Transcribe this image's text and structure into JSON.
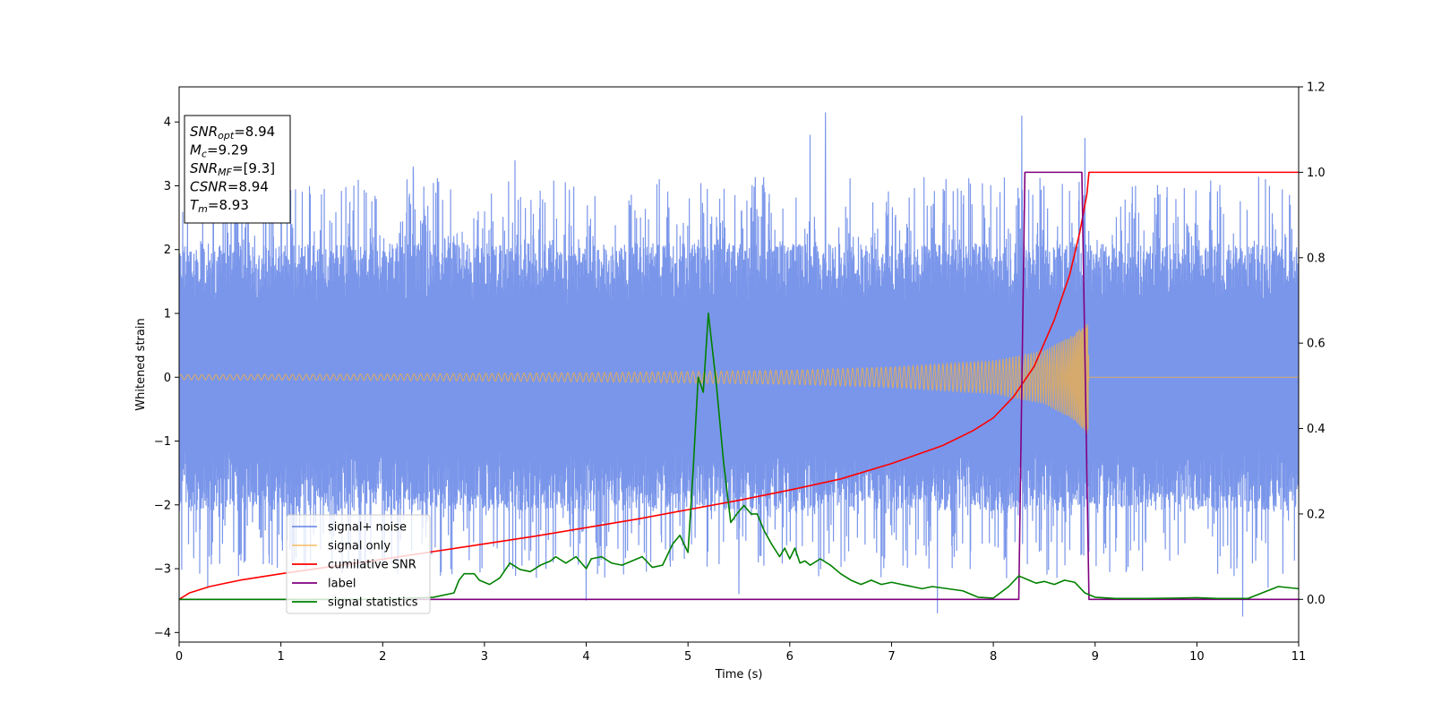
{
  "chart_data": {
    "type": "line",
    "xlabel": "Time (s)",
    "ylabel": "Whitened strain",
    "xlim": [
      0,
      11
    ],
    "ylim_left": [
      -4.15,
      4.55
    ],
    "ylim_right": [
      -0.1,
      1.2
    ],
    "xticks": [
      0,
      1,
      2,
      3,
      4,
      5,
      6,
      7,
      8,
      9,
      10,
      11
    ],
    "yticks_left": [
      -4,
      -3,
      -2,
      -1,
      0,
      1,
      2,
      3,
      4
    ],
    "yticks_right": [
      "0.0",
      "0.2",
      "0.4",
      "0.6",
      "0.8",
      "1.0",
      "1.2"
    ],
    "grid": false,
    "legend_position": "lower-left",
    "info_box": [
      {
        "base": "SNR",
        "sub": "opt",
        "rest": "=8.94"
      },
      {
        "base": "M",
        "sub": "c",
        "rest": "=9.29"
      },
      {
        "base": "SNR",
        "sub": "MF",
        "rest": "=[9.3]"
      },
      {
        "base": "CSNR",
        "sub": "",
        "rest": "=8.94"
      },
      {
        "base": "T",
        "sub": "m",
        "rest": "=8.93"
      }
    ],
    "series": [
      {
        "name": "signal+ noise",
        "color": "#4169e1",
        "axis": "left",
        "envelope_low": -2.1,
        "envelope_high": 2.1,
        "peaks": [
          [
            0.28,
            -3.3
          ],
          [
            0.85,
            3.3
          ],
          [
            2.3,
            3.3
          ],
          [
            3.3,
            3.4
          ],
          [
            4.0,
            -3.5
          ],
          [
            5.5,
            -3.4
          ],
          [
            6.2,
            3.8
          ],
          [
            6.35,
            4.15
          ],
          [
            8.28,
            4.1
          ],
          [
            8.9,
            3.75
          ],
          [
            7.45,
            -3.7
          ],
          [
            10.45,
            -3.75
          ],
          [
            10.7,
            -3.3
          ]
        ]
      },
      {
        "name": "signal only",
        "color": "#f5b041",
        "axis": "left",
        "amplitude": [
          [
            0,
            0.04
          ],
          [
            2,
            0.05
          ],
          [
            4,
            0.07
          ],
          [
            6,
            0.11
          ],
          [
            7,
            0.16
          ],
          [
            8,
            0.26
          ],
          [
            8.5,
            0.42
          ],
          [
            8.8,
            0.68
          ],
          [
            8.93,
            0.9
          ],
          [
            8.94,
            0.0
          ],
          [
            11,
            0.0
          ]
        ]
      },
      {
        "name": "cumilative SNR",
        "color": "#ff0000",
        "axis": "right",
        "x": [
          0,
          0.1,
          0.3,
          0.6,
          1.0,
          1.5,
          2.0,
          2.5,
          3.0,
          3.5,
          4.0,
          4.5,
          5.0,
          5.5,
          6.0,
          6.5,
          7.0,
          7.5,
          7.8,
          8.0,
          8.2,
          8.4,
          8.6,
          8.75,
          8.85,
          8.92,
          8.94,
          11
        ],
        "y": [
          0.0,
          0.015,
          0.03,
          0.045,
          0.06,
          0.077,
          0.094,
          0.112,
          0.13,
          0.148,
          0.168,
          0.188,
          0.21,
          0.232,
          0.256,
          0.282,
          0.318,
          0.36,
          0.395,
          0.425,
          0.475,
          0.545,
          0.655,
          0.76,
          0.86,
          0.95,
          1.0,
          1.0
        ]
      },
      {
        "name": "label",
        "color": "#800080",
        "axis": "right",
        "x": [
          0,
          8.25,
          8.31,
          8.87,
          8.94,
          11
        ],
        "y": [
          0,
          0,
          1,
          1,
          0,
          0
        ]
      },
      {
        "name": "signal statistics",
        "color": "#008000",
        "axis": "right",
        "x": [
          0,
          1,
          2,
          2.5,
          2.7,
          2.75,
          2.8,
          2.9,
          2.95,
          3.05,
          3.15,
          3.25,
          3.35,
          3.45,
          3.55,
          3.65,
          3.7,
          3.8,
          3.9,
          4.0,
          4.05,
          4.15,
          4.25,
          4.35,
          4.45,
          4.55,
          4.65,
          4.75,
          4.85,
          4.92,
          5.0,
          5.05,
          5.1,
          5.15,
          5.2,
          5.28,
          5.35,
          5.42,
          5.48,
          5.55,
          5.62,
          5.68,
          5.75,
          5.82,
          5.9,
          5.95,
          6.0,
          6.05,
          6.1,
          6.15,
          6.2,
          6.3,
          6.4,
          6.5,
          6.6,
          6.7,
          6.8,
          6.9,
          7.0,
          7.1,
          7.2,
          7.3,
          7.4,
          7.55,
          7.7,
          7.85,
          8.0,
          8.15,
          8.25,
          8.35,
          8.42,
          8.5,
          8.6,
          8.7,
          8.8,
          8.9,
          9.0,
          9.2,
          9.5,
          9.8,
          10.0,
          10.2,
          10.5,
          10.8,
          11.0
        ],
        "y": [
          0.0,
          0.0,
          0.0,
          0.005,
          0.015,
          0.045,
          0.06,
          0.06,
          0.045,
          0.035,
          0.05,
          0.085,
          0.07,
          0.065,
          0.08,
          0.09,
          0.1,
          0.085,
          0.1,
          0.072,
          0.095,
          0.1,
          0.085,
          0.08,
          0.09,
          0.1,
          0.075,
          0.08,
          0.13,
          0.15,
          0.11,
          0.3,
          0.52,
          0.485,
          0.67,
          0.5,
          0.32,
          0.18,
          0.2,
          0.22,
          0.2,
          0.2,
          0.16,
          0.13,
          0.1,
          0.12,
          0.095,
          0.12,
          0.085,
          0.09,
          0.08,
          0.095,
          0.08,
          0.06,
          0.045,
          0.035,
          0.045,
          0.035,
          0.04,
          0.035,
          0.03,
          0.025,
          0.03,
          0.025,
          0.02,
          0.005,
          0.003,
          0.03,
          0.055,
          0.045,
          0.038,
          0.042,
          0.035,
          0.045,
          0.04,
          0.015,
          0.005,
          0.002,
          0.002,
          0.003,
          0.004,
          0.002,
          0.002,
          0.03,
          0.025
        ]
      }
    ]
  }
}
